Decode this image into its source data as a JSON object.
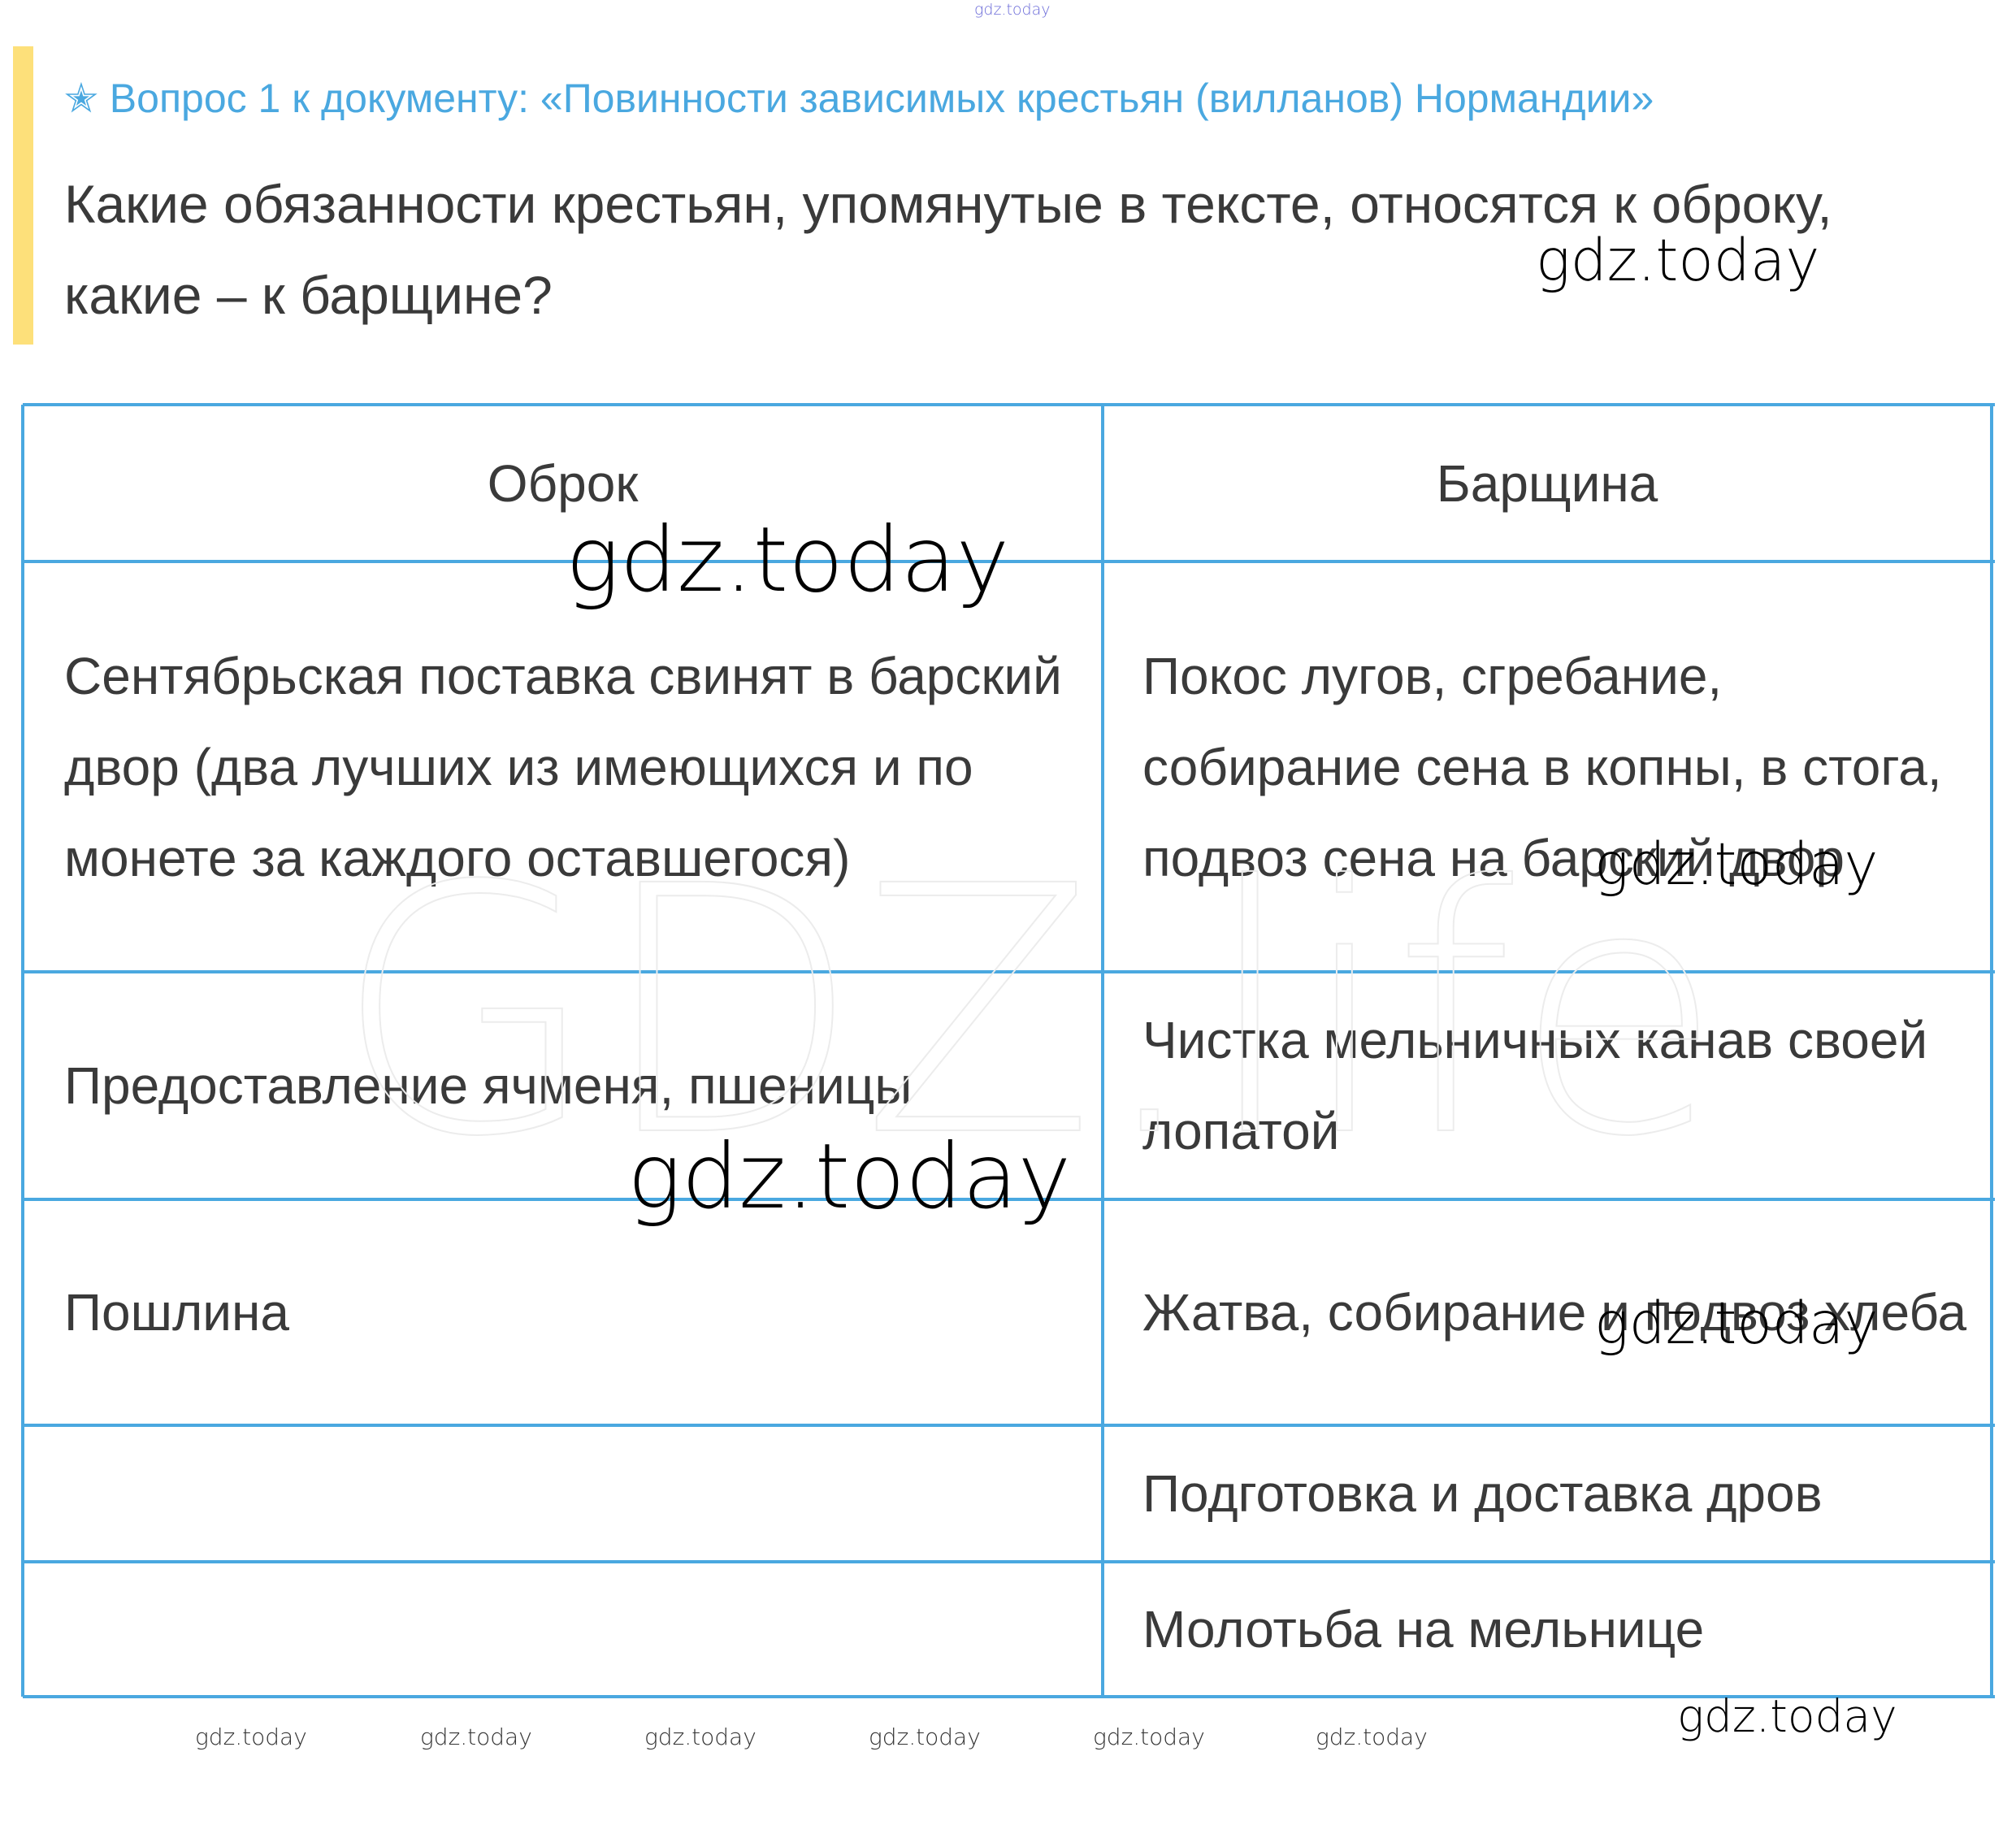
{
  "header": {
    "title": "✭ Вопрос 1 к документу: «Повинности зависимых крестьян (вилланов) Нормандии»",
    "question": "Какие обязанности крестьян, упомянутые в тексте, относятся к оброку, какие – к барщине?"
  },
  "table": {
    "columns": [
      "Оброк",
      "Барщина"
    ],
    "rows": [
      [
        "Сентябрьская поставка свинят в барский двор (два лучших из имеющихся и по монете за каждого оставшегося)",
        "Покос лугов, сгребание, собирание сена в копны, в стога, подвоз сена на барский двор"
      ],
      [
        "Предоставление ячменя, пшеницы",
        "Чистка мельничных канав своей лопатой"
      ],
      [
        "Пошлина",
        "Жатва, собирание и подвоз хлеба"
      ],
      [
        null,
        "Подготовка и доставка дров"
      ],
      [
        null,
        "Молотьба на мельнице"
      ]
    ]
  },
  "watermarks": [
    "GDZ.life",
    "gdz.today",
    "gdz.today",
    "gdz.today",
    "gdz.today",
    "gdz.today",
    "gdz.today",
    "gdz.today",
    "gdz.today",
    "gdz.today",
    "gdz.today",
    "gdz.today",
    "gdz.today",
    "gdz.today"
  ]
}
